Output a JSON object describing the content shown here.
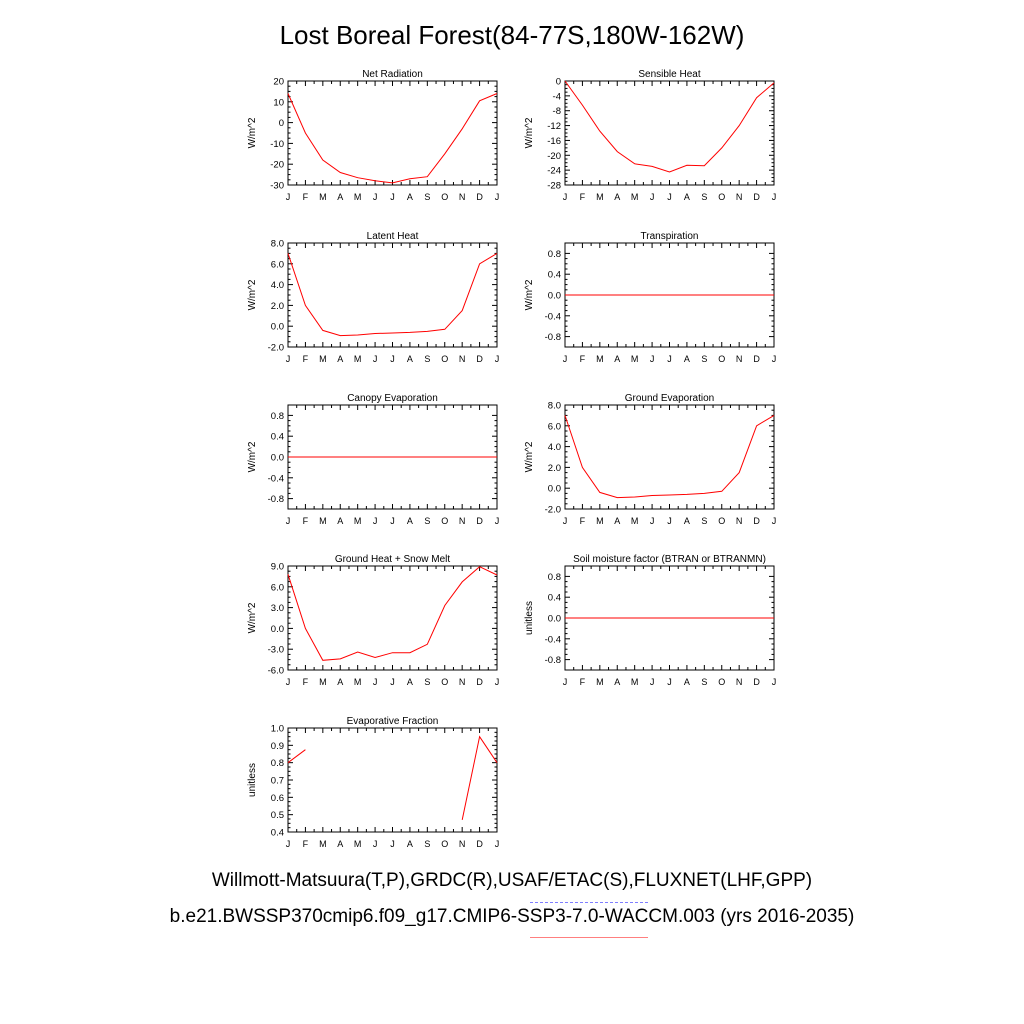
{
  "title": "Lost Boreal Forest(84-77S,180W-162W)",
  "legend": {
    "obs_label": "Willmott-Matsuura(T,P),GRDC(R),USAF/ETAC(S),FLUXNET(LHF,GPP)",
    "model_label": "b.e21.BWSSP370cmip6.f09_g17.CMIP6-SSP3-7.0-WACCM.003 (yrs 2016-2035)",
    "obs_color": "#7f7fff",
    "model_color": "#ff7f7f"
  },
  "chart_data": [
    {
      "type": "line",
      "title": "Net Radiation",
      "ylabel": "W/m^2",
      "x": [
        "J",
        "F",
        "M",
        "A",
        "M",
        "J",
        "J",
        "A",
        "S",
        "O",
        "N",
        "D",
        "J"
      ],
      "ylim": [
        -30,
        20
      ],
      "yticks": [
        -30,
        -20,
        -10,
        0,
        10,
        20
      ],
      "ytick_labels": [
        "-30",
        "-20",
        "-10",
        "0",
        "10",
        "20"
      ],
      "series": [
        {
          "color": "#ff0000",
          "values": [
            14,
            -5,
            -18,
            -24,
            -26.5,
            -28,
            -29,
            -27,
            -26,
            -15,
            -3,
            10.5,
            14
          ]
        }
      ]
    },
    {
      "type": "line",
      "title": "Sensible Heat",
      "ylabel": "W/m^2",
      "x": [
        "J",
        "F",
        "M",
        "A",
        "M",
        "J",
        "J",
        "A",
        "S",
        "O",
        "N",
        "D",
        "J"
      ],
      "ylim": [
        -28,
        0
      ],
      "yticks": [
        -28,
        -24,
        -20,
        -16,
        -12,
        -8,
        -4,
        0
      ],
      "ytick_labels": [
        "-28",
        "-24",
        "-20",
        "-16",
        "-12",
        "-8",
        "-4",
        "0"
      ],
      "series": [
        {
          "color": "#ff0000",
          "values": [
            0,
            -6.5,
            -13.5,
            -19,
            -22.3,
            -23,
            -24.5,
            -22.7,
            -22.8,
            -18,
            -12,
            -4.5,
            -0.5
          ]
        }
      ]
    },
    {
      "type": "line",
      "title": "Latent Heat",
      "ylabel": "W/m^2",
      "x": [
        "J",
        "F",
        "M",
        "A",
        "M",
        "J",
        "J",
        "A",
        "S",
        "O",
        "N",
        "D",
        "J"
      ],
      "ylim": [
        -2,
        8
      ],
      "yticks": [
        -2,
        0,
        2,
        4,
        6,
        8
      ],
      "ytick_labels": [
        "-2.0",
        "0.0",
        "2.0",
        "4.0",
        "6.0",
        "8.0"
      ],
      "series": [
        {
          "color": "#ff0000",
          "values": [
            7,
            2,
            -0.4,
            -0.9,
            -0.85,
            -0.7,
            -0.65,
            -0.6,
            -0.5,
            -0.3,
            1.5,
            6,
            7
          ]
        }
      ]
    },
    {
      "type": "line",
      "title": "Transpiration",
      "ylabel": "W/m^2",
      "x": [
        "J",
        "F",
        "M",
        "A",
        "M",
        "J",
        "J",
        "A",
        "S",
        "O",
        "N",
        "D",
        "J"
      ],
      "ylim": [
        -1,
        1
      ],
      "yticks": [
        -0.8,
        -0.4,
        0,
        0.4,
        0.8
      ],
      "ytick_labels": [
        "-0.8",
        "-0.4",
        "0.0",
        "0.4",
        "0.8"
      ],
      "series": [
        {
          "color": "#ff0000",
          "values": [
            0,
            0,
            0,
            0,
            0,
            0,
            0,
            0,
            0,
            0,
            0,
            0,
            0
          ]
        }
      ]
    },
    {
      "type": "line",
      "title": "Canopy Evaporation",
      "ylabel": "W/m^2",
      "x": [
        "J",
        "F",
        "M",
        "A",
        "M",
        "J",
        "J",
        "A",
        "S",
        "O",
        "N",
        "D",
        "J"
      ],
      "ylim": [
        -1,
        1
      ],
      "yticks": [
        -0.8,
        -0.4,
        0,
        0.4,
        0.8
      ],
      "ytick_labels": [
        "-0.8",
        "-0.4",
        "0.0",
        "0.4",
        "0.8"
      ],
      "series": [
        {
          "color": "#ff0000",
          "values": [
            0,
            0,
            0,
            0,
            0,
            0,
            0,
            0,
            0,
            0,
            0,
            0,
            0
          ]
        }
      ]
    },
    {
      "type": "line",
      "title": "Ground Evaporation",
      "ylabel": "W/m^2",
      "x": [
        "J",
        "F",
        "M",
        "A",
        "M",
        "J",
        "J",
        "A",
        "S",
        "O",
        "N",
        "D",
        "J"
      ],
      "ylim": [
        -2,
        8
      ],
      "yticks": [
        -2,
        0,
        2,
        4,
        6,
        8
      ],
      "ytick_labels": [
        "-2.0",
        "0.0",
        "2.0",
        "4.0",
        "6.0",
        "8.0"
      ],
      "series": [
        {
          "color": "#ff0000",
          "values": [
            7,
            2,
            -0.4,
            -0.9,
            -0.85,
            -0.7,
            -0.65,
            -0.6,
            -0.5,
            -0.3,
            1.5,
            6,
            7
          ]
        }
      ]
    },
    {
      "type": "line",
      "title": "Ground Heat + Snow Melt",
      "ylabel": "W/m^2",
      "x": [
        "J",
        "F",
        "M",
        "A",
        "M",
        "J",
        "J",
        "A",
        "S",
        "O",
        "N",
        "D",
        "J"
      ],
      "ylim": [
        -6,
        9
      ],
      "yticks": [
        -6,
        -3,
        0,
        3,
        6,
        9
      ],
      "ytick_labels": [
        "-6.0",
        "-3.0",
        "0.0",
        "3.0",
        "6.0",
        "9.0"
      ],
      "series": [
        {
          "color": "#ff0000",
          "values": [
            7.8,
            0,
            -4.6,
            -4.4,
            -3.4,
            -4.2,
            -3.5,
            -3.5,
            -2.3,
            3.3,
            6.7,
            8.9,
            7.7
          ]
        }
      ]
    },
    {
      "type": "line",
      "title": "Soil moisture factor (BTRAN or BTRANMN)",
      "ylabel": "unitless",
      "x": [
        "J",
        "F",
        "M",
        "A",
        "M",
        "J",
        "J",
        "A",
        "S",
        "O",
        "N",
        "D",
        "J"
      ],
      "ylim": [
        -1,
        1
      ],
      "yticks": [
        -0.8,
        -0.4,
        0,
        0.4,
        0.8
      ],
      "ytick_labels": [
        "-0.8",
        "-0.4",
        "0.0",
        "0.4",
        "0.8"
      ],
      "series": [
        {
          "color": "#ff0000",
          "values": [
            0,
            0,
            0,
            0,
            0,
            0,
            0,
            0,
            0,
            0,
            0,
            0,
            0
          ]
        }
      ]
    },
    {
      "type": "line",
      "title": "Evaporative Fraction",
      "ylabel": "unitless",
      "x": [
        "J",
        "F",
        "M",
        "A",
        "M",
        "J",
        "J",
        "A",
        "S",
        "O",
        "N",
        "D",
        "J"
      ],
      "ylim": [
        0.4,
        1.0
      ],
      "yticks": [
        0.4,
        0.5,
        0.6,
        0.7,
        0.8,
        0.9,
        1.0
      ],
      "ytick_labels": [
        "0.4",
        "0.5",
        "0.6",
        "0.7",
        "0.8",
        "0.9",
        "1.0"
      ],
      "series": [
        {
          "color": "#ff0000",
          "values": [
            0.8,
            0.875,
            null,
            null,
            null,
            null,
            null,
            null,
            null,
            null,
            0.47,
            0.95,
            0.8
          ]
        }
      ]
    }
  ]
}
